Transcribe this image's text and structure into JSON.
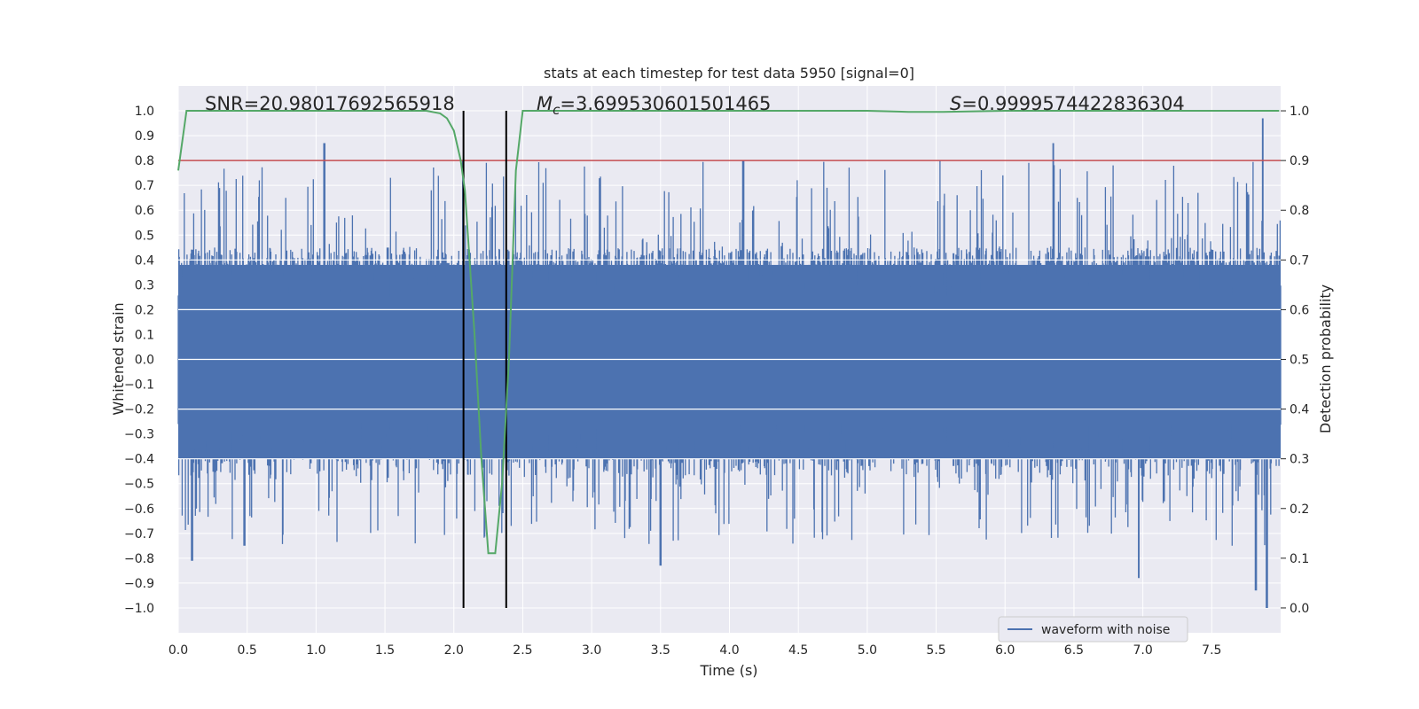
{
  "chart_data": {
    "type": "line",
    "title": "stats at each timestep for test data 5950 [signal=0]",
    "xlabel": "Time (s)",
    "ylabel": "Whitened strain",
    "ylabel_right": "Detection probability",
    "xlim": [
      0.0,
      8.0
    ],
    "ylim": [
      -1.1,
      1.1
    ],
    "ylim_right": [
      -0.05,
      1.05
    ],
    "x_ticks": [
      "0.0",
      "0.5",
      "1.0",
      "1.5",
      "2.0",
      "2.5",
      "3.0",
      "3.5",
      "4.0",
      "4.5",
      "5.0",
      "5.5",
      "6.0",
      "6.5",
      "7.0",
      "7.5"
    ],
    "y_ticks": [
      "1.0",
      "0.9",
      "0.8",
      "0.7",
      "0.6",
      "0.5",
      "0.4",
      "0.3",
      "0.2",
      "0.1",
      "0.0",
      "-0.1",
      "-0.2",
      "-0.3",
      "-0.4",
      "-0.5",
      "-0.6",
      "-0.7",
      "-0.8",
      "-0.9",
      "-1.0"
    ],
    "y_ticks_right": [
      "1.0",
      "0.9",
      "0.8",
      "0.7",
      "0.6",
      "0.5",
      "0.4",
      "0.3",
      "0.2",
      "0.1",
      "0.0"
    ],
    "grid": true,
    "series": [
      {
        "name": "waveform with noise",
        "axis": "left",
        "color": "#4c72b0",
        "kind": "noise",
        "envelope_typical": 0.45,
        "envelope_peak": 0.97,
        "note": "whitened strain, dense noise over 0-8 s"
      },
      {
        "name": "detection probability",
        "axis": "right",
        "color": "#55a868",
        "x": [
          0.0,
          0.06,
          0.3,
          0.6,
          0.9,
          1.2,
          1.5,
          1.8,
          1.9,
          1.95,
          2.0,
          2.05,
          2.08,
          2.15,
          2.2,
          2.25,
          2.3,
          2.35,
          2.4,
          2.45,
          2.5,
          2.6,
          3.0,
          4.0,
          5.0,
          5.3,
          5.55,
          6.0,
          7.0,
          7.8,
          7.99
        ],
        "y": [
          0.88,
          1.0,
          1.0,
          1.0,
          1.0,
          1.0,
          1.0,
          1.0,
          0.995,
          0.985,
          0.96,
          0.9,
          0.84,
          0.55,
          0.3,
          0.11,
          0.11,
          0.25,
          0.5,
          0.88,
          1.0,
          1.0,
          1.0,
          1.0,
          1.0,
          0.998,
          0.998,
          1.0,
          1.0,
          1.0,
          1.0
        ]
      }
    ],
    "threshold": {
      "axis": "right",
      "value": 0.9,
      "color": "#c44e52"
    },
    "vlines": [
      2.07,
      2.38
    ],
    "annotations": {
      "snr": "SNR=20.98017692565918",
      "mc_symbol": "M",
      "mc_sub": "c",
      "mc_value": "=3.699530601501465",
      "s_symbol": "S",
      "s_value": "=0.9999574422836304"
    },
    "legend": {
      "label": "waveform with noise",
      "position": "bottom-right"
    },
    "colors": {
      "background": "#eaeaf2",
      "grid": "#ffffff",
      "waveform": "#4c72b0",
      "probability": "#55a868",
      "threshold": "#c44e52",
      "vline": "#000000"
    }
  }
}
